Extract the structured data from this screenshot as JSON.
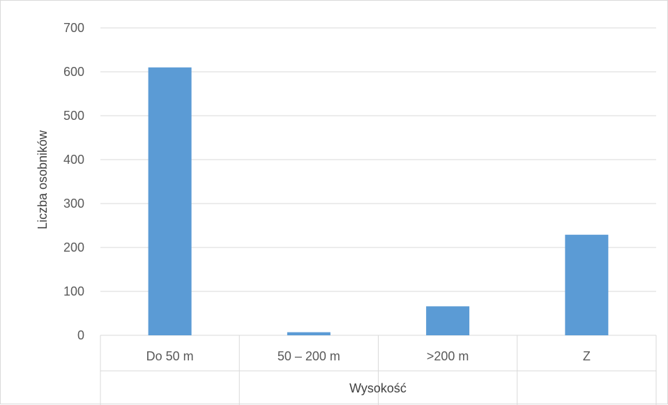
{
  "chart_data": {
    "type": "bar",
    "categories": [
      "Do 50 m",
      "50 – 200 m",
      ">200 m",
      "Z"
    ],
    "values": [
      610,
      7,
      66,
      229
    ],
    "xlabel": "Wysokość",
    "ylabel": "Liczba osobników",
    "ylim": [
      0,
      700
    ],
    "yticks": [
      0,
      100,
      200,
      300,
      400,
      500,
      600,
      700
    ],
    "grid": true,
    "legend": "none",
    "bar_color": "#5b9bd5"
  }
}
